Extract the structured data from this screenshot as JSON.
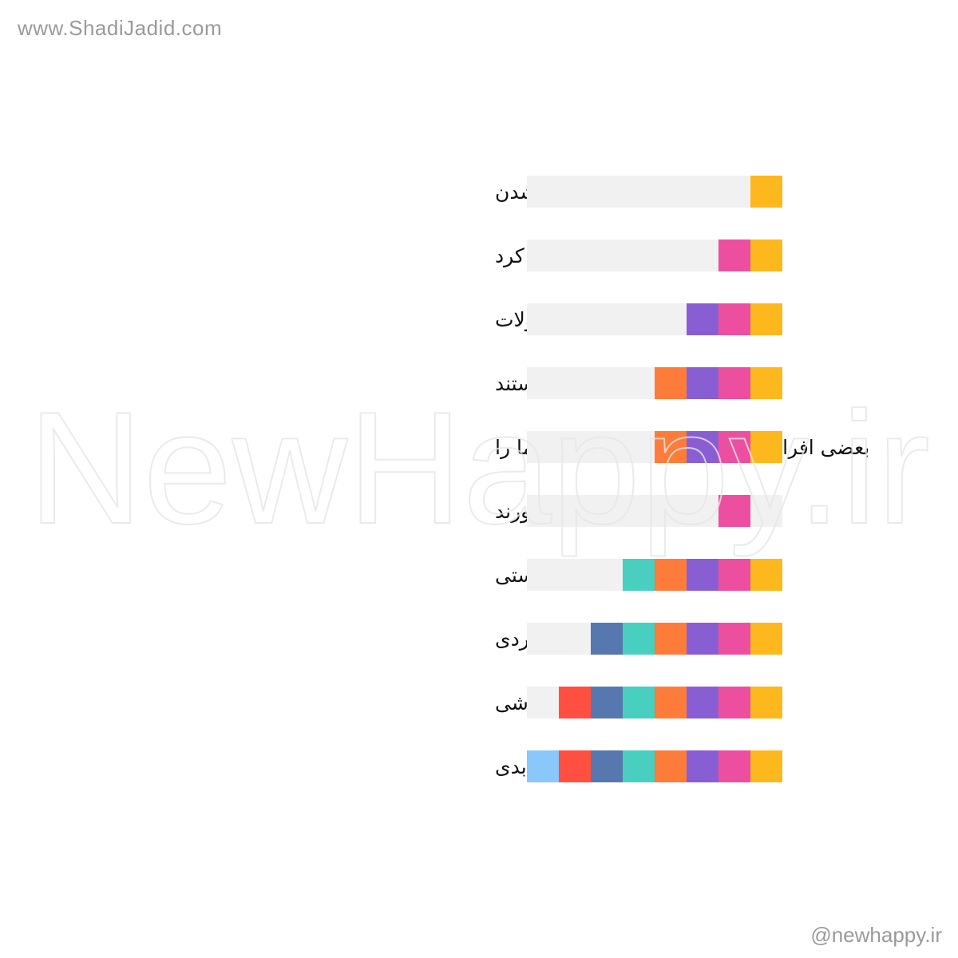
{
  "header": {
    "website": "www.ShadiJadid.com"
  },
  "footer": {
    "handle": "@newhappy.ir"
  },
  "watermark": "NewHappy.ir",
  "empty_color": "#f1f1f1",
  "rows": [
    {
      "label": "با بزرگتر شدن",
      "blocks": [
        "#fdb81e"
      ]
    },
    {
      "label": "شما تغییر خواهید کرد",
      "blocks": [
        "#fdb81e",
        "#ec4fa0"
      ]
    },
    {
      "label": "این تحولات",
      "blocks": [
        "#fdb81e",
        "#ec4fa0",
        "#8a5ed3"
      ]
    },
    {
      "label": "چیز فوق العاده ای هستند",
      "blocks": [
        "#fdb81e",
        "#ec4fa0",
        "#8a5ed3",
        "#fe7c3a"
      ]
    },
    {
      "label": "بعضی افراد ممکن است نسخه قدیمی شما را",
      "blocks": [
        "#fdb81e",
        "#ec4fa0",
        "#8a5ed3",
        "#fe7c3a"
      ]
    },
    {
      "label": "به یاد بیاورند",
      "blocks": [
        null,
        "#ec4fa0"
      ]
    },
    {
      "label": "اما شما دیگه اون نسخه نیستی",
      "blocks": [
        "#fdb81e",
        "#ec4fa0",
        "#8a5ed3",
        "#fe7c3a",
        "#48cfbf"
      ]
    },
    {
      "label": "لازم نیست برگردی",
      "blocks": [
        "#fdb81e",
        "#ec4fa0",
        "#8a5ed3",
        "#fe7c3a",
        "#48cfbf",
        "#5778ae"
      ]
    },
    {
      "label": "الان می تونی خودت باشی",
      "blocks": [
        "#fdb81e",
        "#ec4fa0",
        "#8a5ed3",
        "#fe7c3a",
        "#48cfbf",
        "#5778ae",
        "#fe4f41"
      ]
    },
    {
      "label": "می تونی به دگرگونی ادامه بدی",
      "blocks": [
        "#fdb81e",
        "#ec4fa0",
        "#8a5ed3",
        "#fe7c3a",
        "#48cfbf",
        "#5778ae",
        "#fe4f41",
        "#8ac7fb"
      ]
    }
  ]
}
